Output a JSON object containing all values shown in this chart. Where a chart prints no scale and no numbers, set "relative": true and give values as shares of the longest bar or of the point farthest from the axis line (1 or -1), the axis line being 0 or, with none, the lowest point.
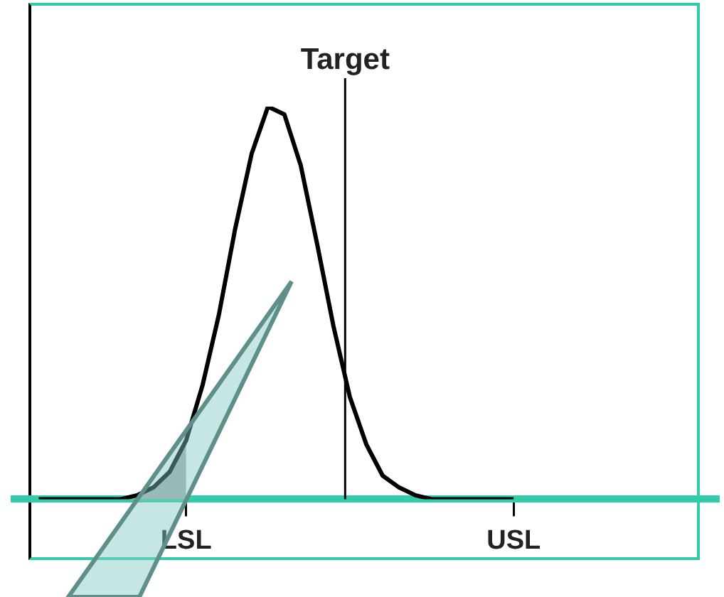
{
  "chart_data": {
    "type": "line",
    "relative": true,
    "grid": false,
    "legend": false,
    "tick_labels": "x",
    "marker": "none",
    "categories": [
      null,
      null,
      null,
      null,
      null,
      null,
      null,
      null,
      null,
      null,
      "LSL",
      null,
      null,
      null,
      null,
      null,
      null,
      null,
      null,
      null,
      null,
      null,
      null,
      null,
      null,
      null,
      null,
      null,
      null,
      null,
      "USL",
      null,
      null,
      null,
      null,
      null,
      null,
      null,
      null,
      null,
      null,
      null,
      null
    ],
    "series": [
      {
        "color": "#000000",
        "values": [
          null,
          0,
          0,
          0,
          0,
          0,
          0,
          0.01,
          0.03,
          0.07,
          0.15,
          0.29,
          0.47,
          0.69,
          0.88,
          1,
          0.98,
          0.85,
          0.65,
          0.44,
          0.26,
          0.14,
          0.06,
          0.03,
          0.01,
          0,
          0,
          0,
          0,
          0,
          0,
          null,
          null,
          null,
          null,
          null,
          null,
          null,
          null,
          null,
          null,
          null,
          null
        ]
      },
      {
        "type": "area",
        "color": "#b0b0b0",
        "values": [
          null,
          null,
          null,
          null,
          null,
          null,
          0,
          0.01,
          0.03,
          0.07,
          0.15,
          null,
          null,
          null,
          null,
          null,
          null,
          null,
          null,
          null,
          null,
          null,
          null,
          null,
          null,
          null,
          null,
          null,
          null,
          null,
          null,
          null,
          null,
          null,
          null,
          null,
          null,
          null,
          null,
          null,
          null,
          null,
          null
        ]
      }
    ],
    "annotations": [
      "Target"
    ]
  }
}
